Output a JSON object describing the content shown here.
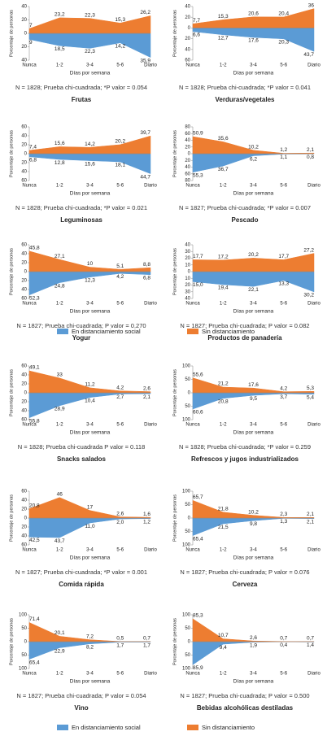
{
  "chart_data": [
    {
      "type": "area",
      "title": "Frutas",
      "note": "N = 1828; Prueba chi-cuadrada; *P valor = 0.054",
      "xlabel": "Días por semana",
      "ylabel": "Porcentaje de personas",
      "categories": [
        "Nunca",
        "1-2",
        "3-4",
        "5-6",
        "Diario"
      ],
      "series": [
        {
          "name": "En distanciamiento social",
          "color": "#5b9bd5",
          "values": [
            -9,
            -18.5,
            -22.3,
            -14.2,
            -35.9
          ],
          "value_labels": [
            "9",
            "18,5",
            "22,3",
            "14,2",
            "35,9"
          ]
        },
        {
          "name": "Sin distanciamiento",
          "color": "#ed7d31",
          "values": [
            7,
            23.2,
            22.3,
            15.3,
            26.2
          ],
          "value_labels": [
            "7",
            "23,2",
            "22,3",
            "15,3",
            "26,2"
          ]
        }
      ],
      "ylim": [
        -40,
        40
      ],
      "yticks": [
        {
          "value": -40,
          "label": "40"
        },
        {
          "value": -20,
          "label": "20"
        },
        0,
        20,
        40
      ]
    },
    {
      "type": "area",
      "title": "Verduras/vegetales",
      "note": "N = 1828; Prueba chi-cuadrada; *P valor = 0.041",
      "xlabel": "Días por semana",
      "ylabel": "Porcentaje de personas",
      "categories": [
        "Nunca",
        "1-2",
        "3-4",
        "5-6",
        "Diario"
      ],
      "series": [
        {
          "name": "En distanciamiento social",
          "color": "#5b9bd5",
          "values": [
            -6.6,
            -12.7,
            -17.6,
            -20.3,
            -43.7
          ],
          "value_labels": [
            "6,6",
            "12,7",
            "17,6",
            "20,3",
            "43,7"
          ]
        },
        {
          "name": "Sin distanciamiento",
          "color": "#ed7d31",
          "values": [
            7.7,
            15.3,
            20.6,
            20.4,
            36
          ],
          "value_labels": [
            "7,7",
            "15,3",
            "20,6",
            "20,4",
            "36"
          ]
        }
      ],
      "ylim": [
        -60,
        40
      ],
      "yticks": [
        {
          "value": -60,
          "label": "60"
        },
        {
          "value": -40,
          "label": "40"
        },
        {
          "value": -20,
          "label": "20"
        },
        0,
        20,
        40
      ]
    },
    {
      "type": "area",
      "title": "Leguminosas",
      "note": "N = 1828; Prueba chi-cuadrada; *P valor = 0.021",
      "xlabel": "Días por semana",
      "ylabel": "Porcentaje de personas",
      "categories": [
        "Nunca",
        "1-2",
        "3-4",
        "5-6",
        "Diario"
      ],
      "series": [
        {
          "name": "En distanciamiento social",
          "color": "#5b9bd5",
          "values": [
            -6.8,
            -12.8,
            -15.6,
            -18.1,
            -44.7
          ],
          "value_labels": [
            "6,8",
            "12,8",
            "15,6",
            "18,1",
            "44,7"
          ]
        },
        {
          "name": "Sin distanciamiento",
          "color": "#ed7d31",
          "values": [
            7.4,
            15.6,
            14.2,
            20.2,
            39.7
          ],
          "value_labels": [
            "7,4",
            "15,6",
            "14,2",
            "20,2",
            "39,7"
          ]
        }
      ],
      "ylim": [
        -60,
        60
      ],
      "yticks": [
        {
          "value": -60,
          "label": "60"
        },
        {
          "value": -40,
          "label": "40"
        },
        {
          "value": -20,
          "label": "20"
        },
        0,
        20,
        40,
        60
      ]
    },
    {
      "type": "area",
      "title": "Pescado",
      "note": "N = 1827; Prueba chi-cuadrada; *P valor = 0.007",
      "xlabel": "Días por semana",
      "ylabel": "Porcentaje de personas",
      "categories": [
        "Nunca",
        "1-2",
        "3-4",
        "5-6",
        "Diario"
      ],
      "series": [
        {
          "name": "En distanciamiento social",
          "color": "#5b9bd5",
          "values": [
            -55.3,
            -36.7,
            -6.2,
            -1.1,
            -0.8
          ],
          "value_labels": [
            "55,3",
            "36,7",
            "6,2",
            "1,1",
            "0,8"
          ]
        },
        {
          "name": "Sin distanciamiento",
          "color": "#ed7d31",
          "values": [
            50.9,
            35.6,
            10.2,
            1.2,
            2.1
          ],
          "value_labels": [
            "50,9",
            "35,6",
            "10,2",
            "1,2",
            "2,1"
          ]
        }
      ],
      "ylim": [
        -80,
        80
      ],
      "yticks": [
        {
          "value": -80,
          "label": "80"
        },
        {
          "value": -60,
          "label": "60"
        },
        {
          "value": -40,
          "label": "40"
        },
        {
          "value": -20,
          "label": "20"
        },
        0,
        20,
        40,
        60,
        80
      ]
    },
    {
      "type": "area",
      "title": "Yogur",
      "note": "N = 1827; Prueba chi-cuadrada; P valor = 0.270",
      "xlabel": "Días por semana",
      "ylabel": "Porcentaje de personas",
      "categories": [
        "Nunca",
        "1-2",
        "3-4",
        "5-6",
        "Diario"
      ],
      "series": [
        {
          "name": "En distanciamiento social",
          "color": "#5b9bd5",
          "values": [
            -52.3,
            -24.8,
            -12.3,
            -4.2,
            -6.8
          ],
          "value_labels": [
            "52,3",
            "24,8",
            "12,3",
            "4,2",
            "6,8"
          ]
        },
        {
          "name": "Sin distanciamiento",
          "color": "#ed7d31",
          "values": [
            45.8,
            27.1,
            10,
            5.1,
            8.8
          ],
          "value_labels": [
            "45,8",
            "27,1",
            "10",
            "5,1",
            "8,8"
          ]
        }
      ],
      "ylim": [
        -60,
        60
      ],
      "yticks": [
        {
          "value": -60,
          "label": "60"
        },
        {
          "value": -40,
          "label": "40"
        },
        {
          "value": -20,
          "label": "20"
        },
        0,
        20,
        40,
        60
      ]
    },
    {
      "type": "area",
      "title": "Productos de panadería",
      "note": "N = 1827; Prueba chi-cuadrada; P valor = 0.082",
      "xlabel": "Días por semana",
      "ylabel": "Porcentaje de personas",
      "categories": [
        "Nunca",
        "1-2",
        "3-4",
        "5-6",
        "Diario"
      ],
      "series": [
        {
          "name": "En distanciamiento social",
          "color": "#5b9bd5",
          "values": [
            -15,
            -19.4,
            -22.1,
            -13.3,
            -30.2
          ],
          "value_labels": [
            "15,0",
            "19,4",
            "22,1",
            "13,3",
            "30,2"
          ]
        },
        {
          "name": "Sin distanciamiento",
          "color": "#ed7d31",
          "values": [
            17.7,
            17.2,
            20.2,
            17.7,
            27.2
          ],
          "value_labels": [
            "17,7",
            "17,2",
            "20,2",
            "17,7",
            "27,2"
          ]
        }
      ],
      "ylim": [
        -40,
        40
      ],
      "yticks": [
        {
          "value": -40,
          "label": "40"
        },
        {
          "value": -30,
          "label": "30"
        },
        {
          "value": -20,
          "label": "20"
        },
        {
          "value": -10,
          "label": "10"
        },
        0,
        10,
        20,
        30,
        40
      ]
    },
    {
      "type": "area",
      "title": "Snacks salados",
      "note": "N = 1828; Prueba chi-cuadrada P valor = 0.118",
      "xlabel": "Días por semana",
      "ylabel": "Porcentaje de personas",
      "categories": [
        "Nunca",
        "1-2",
        "3-4",
        "5-6",
        "Diario"
      ],
      "series": [
        {
          "name": "En distanciamiento social",
          "color": "#5b9bd5",
          "values": [
            -55.8,
            -28.9,
            -10.4,
            -2.7,
            -2.1
          ],
          "value_labels": [
            "55,8",
            "28,9",
            "10,4",
            "2,7",
            "2,1"
          ]
        },
        {
          "name": "Sin distanciamiento",
          "color": "#ed7d31",
          "values": [
            49.1,
            33,
            11.2,
            4.2,
            2.6
          ],
          "value_labels": [
            "49,1",
            "33",
            "11,2",
            "4,2",
            "2,6"
          ]
        }
      ],
      "ylim": [
        -60,
        60
      ],
      "yticks": [
        {
          "value": -60,
          "label": "60"
        },
        {
          "value": -40,
          "label": "40"
        },
        {
          "value": -20,
          "label": "20"
        },
        0,
        20,
        40,
        60
      ]
    },
    {
      "type": "area",
      "title": "Refrescos y jugos industrializados",
      "note": "N = 1828; Prueba chi-cuadrada; *P valor = 0.259",
      "xlabel": "Días por semana",
      "ylabel": "Porcentaje de personas",
      "categories": [
        "Nunca",
        "1-2",
        "3-4",
        "5-6",
        "Diario"
      ],
      "series": [
        {
          "name": "En distanciamiento social",
          "color": "#5b9bd5",
          "values": [
            -60.6,
            -20.8,
            -9.5,
            -3.7,
            -5.4
          ],
          "value_labels": [
            "60,6",
            "20,8",
            "9,5",
            "3,7",
            "5,4"
          ]
        },
        {
          "name": "Sin distanciamiento",
          "color": "#ed7d31",
          "values": [
            55.6,
            21.2,
            17.6,
            4.2,
            5.3
          ],
          "value_labels": [
            "55,6",
            "21,2",
            "17,6",
            "4,2",
            "5,3"
          ]
        }
      ],
      "ylim": [
        -100,
        100
      ],
      "yticks": [
        {
          "value": -100,
          "label": "100"
        },
        {
          "value": -50,
          "label": "50"
        },
        0,
        50,
        100
      ]
    },
    {
      "type": "area",
      "title": "Comida rápida",
      "note": "N = 1827; Prueba chi-cuadrada; *P valor = 0.001",
      "xlabel": "Días por semana",
      "ylabel": "Porcentaje de personas",
      "categories": [
        "Nunca",
        "1-2",
        "3-4",
        "5-6",
        "Diario"
      ],
      "series": [
        {
          "name": "En distanciamiento social",
          "color": "#5b9bd5",
          "values": [
            -42.5,
            -43.7,
            -11,
            -2,
            -1.2
          ],
          "value_labels": [
            "42,5",
            "43,7",
            "11,0",
            "2,0",
            "1,2"
          ]
        },
        {
          "name": "Sin distanciamiento",
          "color": "#ed7d31",
          "values": [
            20.8,
            46,
            17,
            2.6,
            1.6
          ],
          "value_labels": [
            "20,8",
            "46",
            "17",
            "2,6",
            "1,6"
          ]
        }
      ],
      "ylim": [
        -60,
        60
      ],
      "yticks": [
        {
          "value": -60,
          "label": "60"
        },
        {
          "value": -40,
          "label": "40"
        },
        {
          "value": -20,
          "label": "20"
        },
        0,
        20,
        40,
        60
      ]
    },
    {
      "type": "area",
      "title": "Cerveza",
      "note": "N = 1827; Prueba chi-cuadrada; P valor = 0.076",
      "xlabel": "Días por semana",
      "ylabel": "Porcentaje de personas",
      "categories": [
        "Nunca",
        "1-2",
        "3-4",
        "5-6",
        "Diario"
      ],
      "series": [
        {
          "name": "En distanciamiento social",
          "color": "#5b9bd5",
          "values": [
            -65.4,
            -21.5,
            -9.8,
            -1.3,
            -2.1
          ],
          "value_labels": [
            "65,4",
            "21,5",
            "9,8",
            "1,3",
            "2,1"
          ]
        },
        {
          "name": "Sin distanciamiento",
          "color": "#ed7d31",
          "values": [
            65.7,
            21.8,
            10.2,
            2.3,
            2.1
          ],
          "value_labels": [
            "65,7",
            "21,8",
            "10,2",
            "2,3",
            "2,1"
          ]
        }
      ],
      "ylim": [
        -100,
        100
      ],
      "yticks": [
        {
          "value": -100,
          "label": "100"
        },
        {
          "value": -50,
          "label": "50"
        },
        0,
        50,
        100
      ]
    },
    {
      "type": "area",
      "title": "Vino",
      "note": "N = 1827; Prueba chi-cuadrada; P valor = 0.054",
      "xlabel": "Días por semana",
      "ylabel": "Porcentaje de personas",
      "categories": [
        "Nunca",
        "1-2",
        "3-4",
        "5-6",
        "Diario"
      ],
      "series": [
        {
          "name": "En distanciamiento social",
          "color": "#5b9bd5",
          "values": [
            -65.4,
            -22.9,
            -8.2,
            -1.7,
            -1.7
          ],
          "value_labels": [
            "65,4",
            "22,9",
            "8,2",
            "1,7",
            "1,7"
          ]
        },
        {
          "name": "Sin distanciamiento",
          "color": "#ed7d31",
          "values": [
            71.4,
            20.1,
            7.2,
            0.5,
            0.7
          ],
          "value_labels": [
            "71,4",
            "20,1",
            "7,2",
            "0,5",
            "0,7"
          ]
        }
      ],
      "ylim": [
        -100,
        100
      ],
      "yticks": [
        {
          "value": -100,
          "label": "100"
        },
        {
          "value": -50,
          "label": "50"
        },
        0,
        50,
        100
      ]
    },
    {
      "type": "area",
      "title": "Bebidas alcohólicas destiladas",
      "note": "N = 1827; Prueba chi-cuadrada; P valor = 0.500",
      "xlabel": "Días por semana",
      "ylabel": "Porcentaje de personas",
      "categories": [
        "Nunca",
        "1-2",
        "3-4",
        "5-6",
        "Diario"
      ],
      "series": [
        {
          "name": "En distanciamiento social",
          "color": "#5b9bd5",
          "values": [
            -85.9,
            -9.4,
            -1.9,
            -0.4,
            -1.4
          ],
          "value_labels": [
            "85,9",
            "9,4",
            "1,9",
            "0,4",
            "1,4"
          ]
        },
        {
          "name": "Sin distanciamiento",
          "color": "#ed7d31",
          "values": [
            85.3,
            10.7,
            2.6,
            0.7,
            0.7
          ],
          "value_labels": [
            "85,3",
            "10,7",
            "2,6",
            "0,7",
            "0,7"
          ]
        }
      ],
      "ylim": [
        -100,
        100
      ],
      "yticks": [
        {
          "value": -100,
          "label": "100"
        },
        {
          "value": -50,
          "label": "50"
        },
        0,
        50,
        100
      ]
    }
  ]
}
